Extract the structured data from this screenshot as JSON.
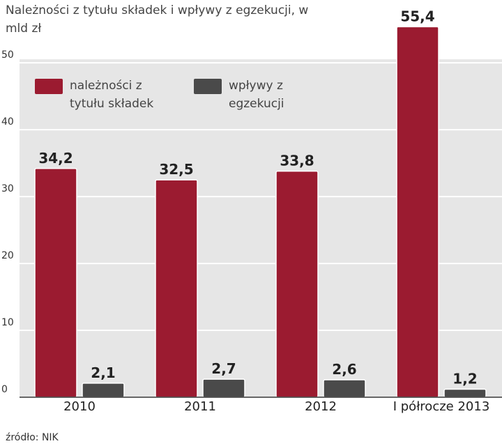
{
  "chart_data": {
    "type": "bar",
    "title": "Należności z tytułu składek i wpływy z egzekucji, w mld zł",
    "source": "źródło: NIK",
    "categories": [
      "2010",
      "2011",
      "2012",
      "I półrocze 2013"
    ],
    "series": [
      {
        "name": "należności z tytułu składek",
        "color": "#9b1b30",
        "values": [
          34.2,
          32.5,
          33.8,
          55.4
        ],
        "value_labels": [
          "34,2",
          "32,5",
          "33,8",
          "55,4"
        ]
      },
      {
        "name": "wpływy z egzekucji",
        "color": "#4a4a4a",
        "values": [
          2.1,
          2.7,
          2.6,
          1.2
        ],
        "value_labels": [
          "2,1",
          "2,7",
          "2,6",
          "1,2"
        ]
      }
    ],
    "ylim": [
      0,
      57
    ],
    "yticks": [
      0,
      10,
      20,
      30,
      40,
      50
    ],
    "grid": true,
    "legend": "top-left"
  }
}
